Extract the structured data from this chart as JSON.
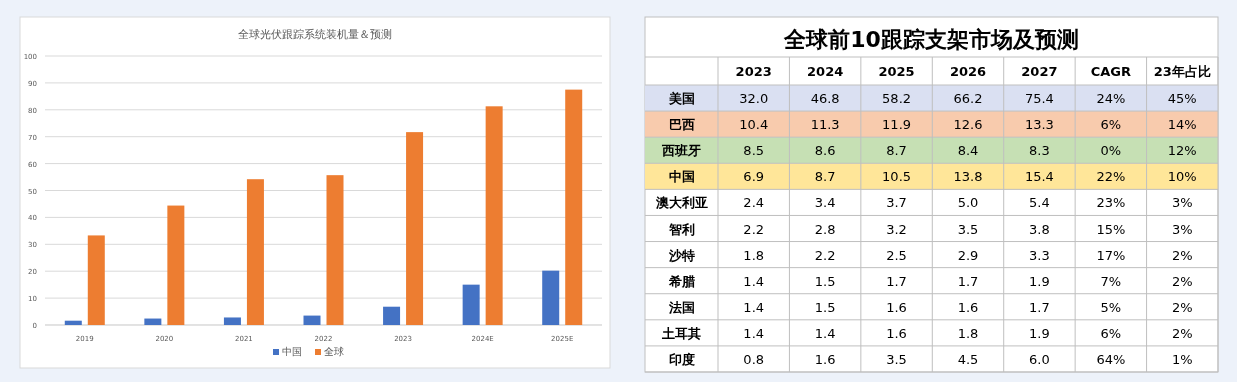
{
  "chart_data": [
    {
      "type": "bar",
      "title": "全球光伏跟踪系统装机量＆预测",
      "categories": [
        "2019",
        "2020",
        "2021",
        "2022",
        "2023",
        "2024E",
        "2025E"
      ],
      "series": [
        {
          "name": "中国",
          "color": "#4472c4",
          "values": [
            1.6,
            2.4,
            2.8,
            3.5,
            6.8,
            15.0,
            20.2
          ]
        },
        {
          "name": "全球",
          "color": "#ed7d31",
          "values": [
            33.3,
            44.4,
            54.2,
            55.7,
            71.7,
            81.3,
            87.5
          ]
        }
      ],
      "ylim": [
        0,
        100
      ],
      "yticks": [
        0,
        10,
        20,
        30,
        40,
        50,
        60,
        70,
        80,
        90,
        100
      ],
      "grid": "y",
      "legend": "bottom"
    },
    {
      "type": "heatmap",
      "title": "全球前10跟踪支架市场及预测",
      "categories": [
        "2023",
        "2024",
        "2025",
        "2026",
        "2027",
        "CAGR",
        "23年占比"
      ],
      "y_categories": [
        "美国",
        "巴西",
        "西班牙",
        "中国",
        "澳大利亚",
        "智利",
        "沙特",
        "希腊",
        "法国",
        "土耳其",
        "印度"
      ],
      "cells": [
        [
          32.0,
          46.8,
          58.2,
          66.2,
          75.4,
          24,
          45
        ],
        [
          10.4,
          11.3,
          11.9,
          12.6,
          13.3,
          6,
          14
        ],
        [
          8.5,
          8.6,
          8.7,
          8.4,
          8.3,
          0,
          12
        ],
        [
          6.9,
          8.7,
          10.5,
          13.8,
          15.4,
          22,
          10
        ],
        [
          2.4,
          3.4,
          3.7,
          5.0,
          5.4,
          23,
          3
        ],
        [
          2.2,
          2.8,
          3.2,
          3.5,
          3.8,
          15,
          3
        ],
        [
          1.8,
          2.2,
          2.5,
          2.9,
          3.3,
          17,
          2
        ],
        [
          1.4,
          1.5,
          1.7,
          1.7,
          1.9,
          7,
          2
        ],
        [
          1.4,
          1.5,
          1.6,
          1.6,
          1.7,
          5,
          2
        ],
        [
          1.4,
          1.4,
          1.6,
          1.8,
          1.9,
          6,
          2
        ],
        [
          0.8,
          1.6,
          3.5,
          4.5,
          6.0,
          64,
          1
        ]
      ],
      "cell_labels": [
        [
          "32.0",
          "46.8",
          "58.2",
          "66.2",
          "75.4",
          "24%",
          "45%"
        ],
        [
          "10.4",
          "11.3",
          "11.9",
          "12.6",
          "13.3",
          "6%",
          "14%"
        ],
        [
          "8.5",
          "8.6",
          "8.7",
          "8.4",
          "8.3",
          "0%",
          "12%"
        ],
        [
          "6.9",
          "8.7",
          "10.5",
          "13.8",
          "15.4",
          "22%",
          "10%"
        ],
        [
          "2.4",
          "3.4",
          "3.7",
          "5.0",
          "5.4",
          "23%",
          "3%"
        ],
        [
          "2.2",
          "2.8",
          "3.2",
          "3.5",
          "3.8",
          "15%",
          "3%"
        ],
        [
          "1.8",
          "2.2",
          "2.5",
          "2.9",
          "3.3",
          "17%",
          "2%"
        ],
        [
          "1.4",
          "1.5",
          "1.7",
          "1.7",
          "1.9",
          "7%",
          "2%"
        ],
        [
          "1.4",
          "1.5",
          "1.6",
          "1.6",
          "1.7",
          "5%",
          "2%"
        ],
        [
          "1.4",
          "1.4",
          "1.6",
          "1.8",
          "1.9",
          "6%",
          "2%"
        ],
        [
          "0.8",
          "1.6",
          "3.5",
          "4.5",
          "6.0",
          "64%",
          "1%"
        ]
      ],
      "colors": [
        "#dae0f2",
        "#f8cbad",
        "#c6e0b4",
        "#ffe699",
        "#ffffff",
        "#ffffff",
        "#ffffff",
        "#ffffff",
        "#ffffff",
        "#ffffff",
        "#ffffff"
      ]
    }
  ]
}
